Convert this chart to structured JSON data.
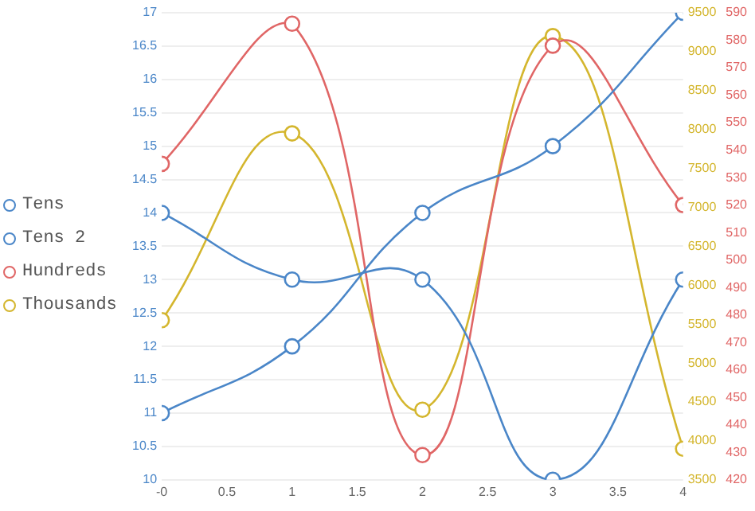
{
  "chart_data": {
    "type": "line",
    "x": [
      0,
      1,
      2,
      3,
      4
    ],
    "series": [
      {
        "name": "Tens",
        "color": "#4a86c8",
        "values": [
          11,
          12,
          14,
          15,
          17
        ]
      },
      {
        "name": "Tens 2",
        "color": "#4a86c8",
        "values": [
          14,
          13,
          13,
          10,
          13
        ]
      },
      {
        "name": "Hundreds",
        "color": "#e06666",
        "values": [
          535,
          586,
          429,
          578,
          520
        ],
        "axis": "y3"
      },
      {
        "name": "Thousands",
        "color": "#d4b62e",
        "values": [
          5550,
          7950,
          4400,
          9200,
          3900
        ],
        "axis": "y2"
      }
    ],
    "xlim": [
      0,
      4
    ],
    "xticks": [
      {
        "value": 0,
        "label": "-0"
      },
      0.5,
      1,
      1.5,
      2,
      2.5,
      3,
      3.5,
      4
    ],
    "ylim": [
      10,
      17
    ],
    "yticks": [
      10,
      10.5,
      11,
      11.5,
      12,
      12.5,
      13,
      13.5,
      14,
      14.5,
      15,
      15.5,
      16,
      16.5,
      17
    ],
    "y2lim": [
      3500,
      9500
    ],
    "y2ticks": [
      3500,
      4000,
      4500,
      5000,
      5500,
      6000,
      6500,
      7000,
      7500,
      8000,
      8500,
      9000,
      9500
    ],
    "y3lim": [
      420,
      590
    ],
    "y3ticks": [
      420,
      430,
      440,
      450,
      460,
      470,
      480,
      490,
      500,
      510,
      520,
      530,
      540,
      550,
      560,
      570,
      580,
      590
    ],
    "grid": "y",
    "legend": "left",
    "marker": "circle",
    "line_style": "solid"
  }
}
